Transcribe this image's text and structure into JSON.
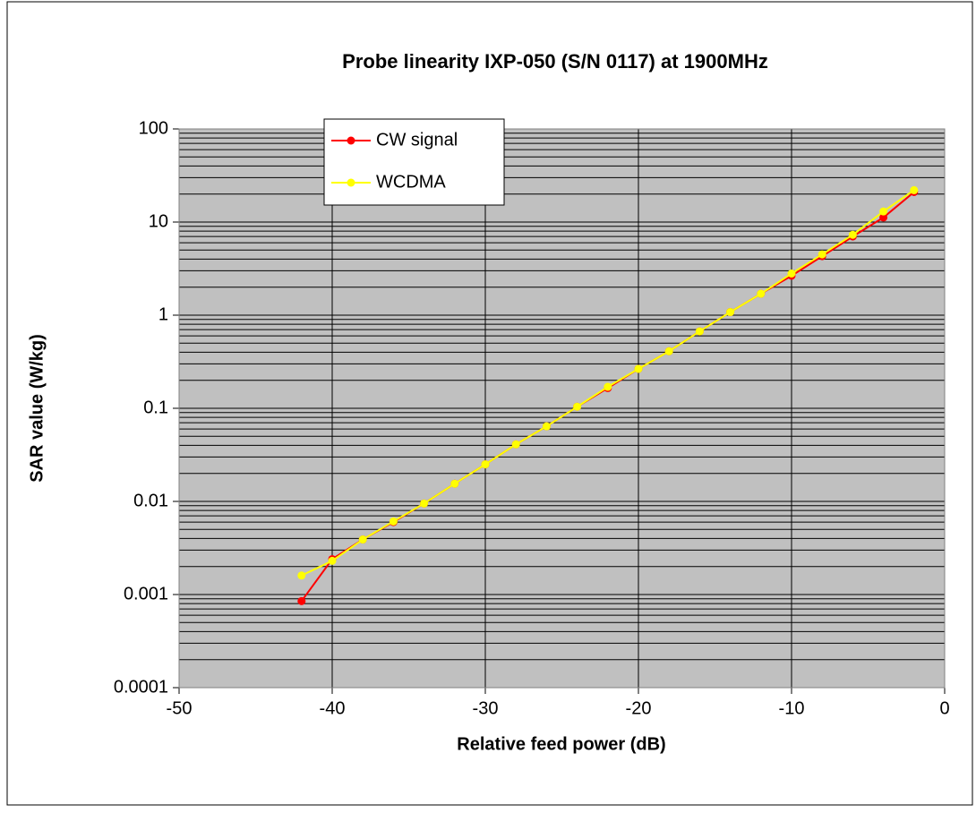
{
  "chart_data": {
    "type": "line",
    "title": "Probe linearity IXP-050 (S/N 0117) at 1900MHz",
    "x_label": "Relative feed power (dB)",
    "y_label": "SAR value (W/kg)",
    "x": [
      -42,
      -40,
      -38,
      -36,
      -34,
      -32,
      -30,
      -28,
      -26,
      -24,
      -22,
      -20,
      -18,
      -16,
      -14,
      -12,
      -10,
      -8,
      -6,
      -4,
      -2
    ],
    "series": [
      {
        "name": "CW signal",
        "color": "#ff0000",
        "values": [
          0.00085,
          0.0024,
          0.0039,
          0.006,
          0.0095,
          0.0155,
          0.025,
          0.041,
          0.064,
          0.104,
          0.165,
          0.265,
          0.41,
          0.67,
          1.08,
          1.7,
          2.65,
          4.3,
          7.0,
          11.2,
          21
        ]
      },
      {
        "name": "WCDMA",
        "color": "#ffff00",
        "values": [
          0.0016,
          0.0023,
          0.0039,
          0.0061,
          0.0095,
          0.0155,
          0.025,
          0.041,
          0.064,
          0.104,
          0.17,
          0.265,
          0.41,
          0.67,
          1.08,
          1.7,
          2.8,
          4.5,
          7.3,
          13,
          22
        ]
      }
    ],
    "xlim": [
      -50,
      0
    ],
    "xticks": [
      -50,
      -40,
      -30,
      -20,
      -10,
      0
    ],
    "ylim": [
      0.0001,
      100
    ],
    "yticks": [
      0.0001,
      0.001,
      0.01,
      0.1,
      1,
      10,
      100
    ],
    "yscale": "log",
    "grid": true,
    "minor_grid": true,
    "legend": "upper left"
  }
}
